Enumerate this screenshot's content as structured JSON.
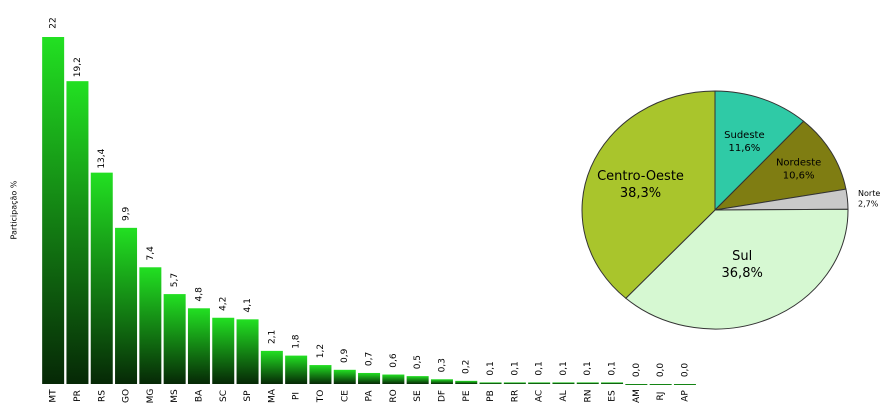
{
  "chart_data": [
    {
      "type": "bar",
      "ylabel": "Participação %",
      "categories": [
        "MT",
        "PR",
        "RS",
        "GO",
        "MG",
        "MS",
        "BA",
        "SC",
        "SP",
        "MA",
        "PI",
        "TO",
        "CE",
        "PA",
        "RO",
        "SE",
        "DF",
        "PE",
        "PB",
        "RR",
        "AC",
        "AL",
        "RN",
        "ES",
        "AM",
        "RJ",
        "AP"
      ],
      "values": [
        22,
        19.2,
        13.4,
        9.9,
        7.4,
        5.7,
        4.8,
        4.2,
        4.1,
        2.1,
        1.8,
        1.2,
        0.9,
        0.7,
        0.6,
        0.5,
        0.3,
        0.2,
        0.1,
        0.1,
        0.1,
        0.1,
        0.1,
        0.1,
        0,
        0,
        0
      ],
      "value_labels": [
        "22",
        "19,2",
        "13,4",
        "9,9",
        "7,4",
        "5,7",
        "4,8",
        "4,2",
        "4,1",
        "2,1",
        "1,8",
        "1,2",
        "0,9",
        "0,7",
        "0,6",
        "0,5",
        "0,3",
        "0,2",
        "0,1",
        "0,1",
        "0,1",
        "0,1",
        "0,1",
        "0,1",
        "0,0",
        "0,0",
        "0,0"
      ],
      "color": "#22e022",
      "ylim": [
        0,
        22
      ]
    },
    {
      "type": "pie",
      "categories": [
        "Sudeste",
        "Nordeste",
        "Norte",
        "Sul",
        "Centro-Oeste"
      ],
      "values": [
        11.6,
        10.6,
        2.7,
        36.8,
        38.3
      ],
      "value_labels": [
        "11,6%",
        "10,6%",
        "2,7%",
        "36,8%",
        "38,3%"
      ],
      "colors": [
        "#2fcaa6",
        "#7f7d12",
        "#c9c9c9",
        "#d6f8d2",
        "#a9c52c"
      ]
    }
  ]
}
